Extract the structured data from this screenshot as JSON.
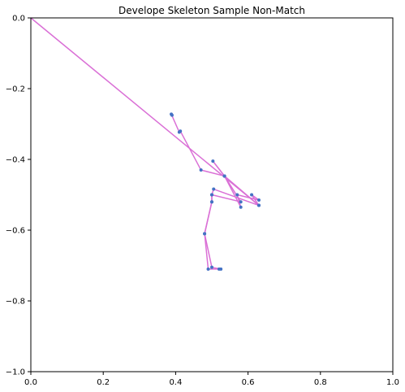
{
  "chart_data": {
    "type": "line",
    "title": "Develope Skeleton Sample Non-Match",
    "xlabel": "",
    "ylabel": "",
    "xlim": [
      0.0,
      1.0
    ],
    "ylim": [
      -1.0,
      0.0
    ],
    "grid": false,
    "x_ticks": [
      "0.0",
      "0.2",
      "0.4",
      "0.6",
      "0.8",
      "1.0"
    ],
    "x_tick_values": [
      0.0,
      0.2,
      0.4,
      0.6,
      0.8,
      1.0
    ],
    "y_ticks": [
      "0.0",
      "−0.2",
      "−0.4",
      "−0.6",
      "−0.8",
      "−1.0"
    ],
    "y_tick_values": [
      0.0,
      -0.2,
      -0.4,
      -0.6,
      -0.8,
      -1.0
    ],
    "line_color": "#da70d6",
    "point_color": "#4472c4",
    "series": [
      {
        "values": [
          [
            0.0,
            0.0
          ],
          [
            0.63,
            -0.53
          ],
          [
            0.535,
            -0.447
          ],
          [
            0.503,
            -0.405
          ],
          [
            0.535,
            -0.447
          ],
          [
            0.58,
            -0.535
          ],
          [
            0.57,
            -0.5
          ],
          [
            0.63,
            -0.515
          ],
          [
            0.61,
            -0.5
          ],
          [
            0.63,
            -0.53
          ],
          [
            0.505,
            -0.484
          ],
          [
            0.5,
            -0.5
          ],
          [
            0.5,
            -0.52
          ],
          [
            0.48,
            -0.61
          ],
          [
            0.49,
            -0.71
          ],
          [
            0.52,
            -0.71
          ],
          [
            0.525,
            -0.71
          ],
          [
            0.5,
            -0.705
          ],
          [
            0.48,
            -0.61
          ],
          [
            0.5,
            -0.52
          ],
          [
            0.5,
            -0.5
          ],
          [
            0.58,
            -0.52
          ],
          [
            0.535,
            -0.447
          ],
          [
            0.47,
            -0.43
          ],
          [
            0.413,
            -0.32
          ],
          [
            0.41,
            -0.323
          ],
          [
            0.388,
            -0.272
          ],
          [
            0.39,
            -0.275
          ]
        ]
      }
    ]
  }
}
